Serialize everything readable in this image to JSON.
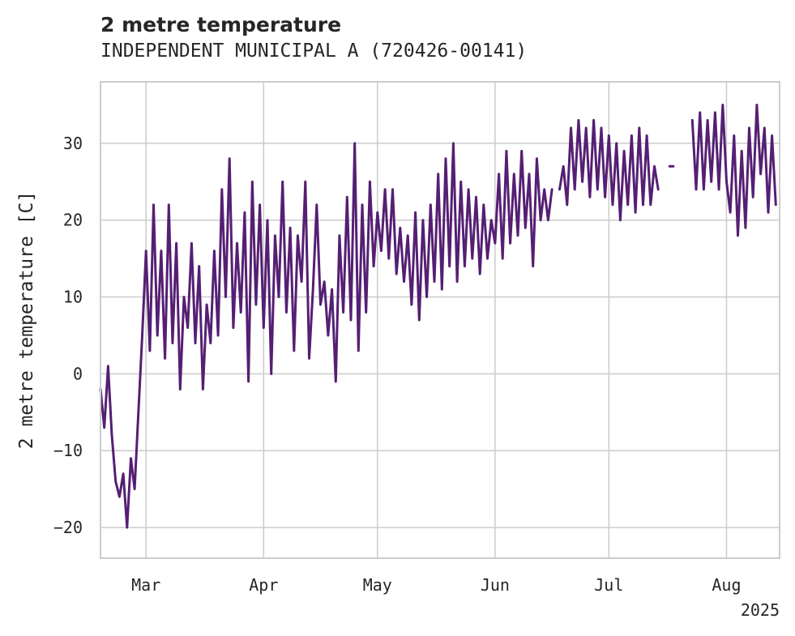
{
  "colors": {
    "line": "#551f73",
    "grid": "#cccccc",
    "frame": "#cccccc",
    "text": "#262626"
  },
  "chart_data": {
    "type": "line",
    "title": "2 metre temperature",
    "subtitle": "INDEPENDENT MUNICIPAL A (720426-00141)",
    "xlabel": "",
    "ylabel": "2 metre temperature [C]",
    "xlim": [
      "2025-02-17",
      "2025-08-15"
    ],
    "ylim": [
      -24,
      38
    ],
    "yticks": [
      -20,
      -10,
      0,
      10,
      20,
      30
    ],
    "xticks": [
      {
        "date": "2025-03-01",
        "label": "Mar"
      },
      {
        "date": "2025-04-01",
        "label": "Apr"
      },
      {
        "date": "2025-05-01",
        "label": "May"
      },
      {
        "date": "2025-06-01",
        "label": "Jun"
      },
      {
        "date": "2025-07-01",
        "label": "Jul"
      },
      {
        "date": "2025-08-01",
        "label": "Aug"
      }
    ],
    "year_label": "2025",
    "grid": true,
    "series": [
      {
        "segments": [
          [
            [
              "2025-02-17",
              -2
            ],
            [
              "2025-02-18",
              -7
            ],
            [
              "2025-02-19",
              1
            ],
            [
              "2025-02-20",
              -8
            ],
            [
              "2025-02-21",
              -14
            ],
            [
              "2025-02-22",
              -16
            ],
            [
              "2025-02-23",
              -13
            ],
            [
              "2025-02-24",
              -20
            ],
            [
              "2025-02-25",
              -11
            ],
            [
              "2025-02-26",
              -15
            ],
            [
              "2025-02-27",
              -5
            ],
            [
              "2025-02-28",
              5
            ],
            [
              "2025-03-01",
              16
            ],
            [
              "2025-03-02",
              3
            ],
            [
              "2025-03-03",
              22
            ],
            [
              "2025-03-04",
              5
            ],
            [
              "2025-03-05",
              16
            ],
            [
              "2025-03-06",
              2
            ],
            [
              "2025-03-07",
              22
            ],
            [
              "2025-03-08",
              4
            ],
            [
              "2025-03-09",
              17
            ],
            [
              "2025-03-10",
              -2
            ],
            [
              "2025-03-11",
              10
            ],
            [
              "2025-03-12",
              6
            ],
            [
              "2025-03-13",
              17
            ],
            [
              "2025-03-14",
              4
            ],
            [
              "2025-03-15",
              14
            ],
            [
              "2025-03-16",
              -2
            ],
            [
              "2025-03-17",
              9
            ],
            [
              "2025-03-18",
              4
            ],
            [
              "2025-03-19",
              16
            ],
            [
              "2025-03-20",
              5
            ],
            [
              "2025-03-21",
              24
            ],
            [
              "2025-03-22",
              10
            ],
            [
              "2025-03-23",
              28
            ],
            [
              "2025-03-24",
              6
            ],
            [
              "2025-03-25",
              17
            ],
            [
              "2025-03-26",
              8
            ],
            [
              "2025-03-27",
              21
            ],
            [
              "2025-03-28",
              -1
            ],
            [
              "2025-03-29",
              25
            ],
            [
              "2025-03-30",
              9
            ],
            [
              "2025-03-31",
              22
            ],
            [
              "2025-04-01",
              6
            ],
            [
              "2025-04-02",
              20
            ],
            [
              "2025-04-03",
              0
            ],
            [
              "2025-04-04",
              18
            ],
            [
              "2025-04-05",
              10
            ],
            [
              "2025-04-06",
              25
            ],
            [
              "2025-04-07",
              8
            ],
            [
              "2025-04-08",
              19
            ],
            [
              "2025-04-09",
              3
            ],
            [
              "2025-04-10",
              18
            ],
            [
              "2025-04-11",
              12
            ],
            [
              "2025-04-12",
              25
            ],
            [
              "2025-04-13",
              2
            ],
            [
              "2025-04-14",
              11
            ],
            [
              "2025-04-15",
              22
            ],
            [
              "2025-04-16",
              9
            ],
            [
              "2025-04-17",
              12
            ],
            [
              "2025-04-18",
              5
            ],
            [
              "2025-04-19",
              11
            ],
            [
              "2025-04-20",
              -1
            ],
            [
              "2025-04-21",
              18
            ],
            [
              "2025-04-22",
              8
            ],
            [
              "2025-04-23",
              23
            ],
            [
              "2025-04-24",
              7
            ],
            [
              "2025-04-25",
              30
            ],
            [
              "2025-04-26",
              3
            ],
            [
              "2025-04-27",
              22
            ],
            [
              "2025-04-28",
              8
            ],
            [
              "2025-04-29",
              25
            ],
            [
              "2025-04-30",
              14
            ],
            [
              "2025-05-01",
              21
            ],
            [
              "2025-05-02",
              16
            ],
            [
              "2025-05-03",
              24
            ],
            [
              "2025-05-04",
              15
            ],
            [
              "2025-05-05",
              24
            ],
            [
              "2025-05-06",
              13
            ],
            [
              "2025-05-07",
              19
            ],
            [
              "2025-05-08",
              12
            ],
            [
              "2025-05-09",
              18
            ],
            [
              "2025-05-10",
              9
            ],
            [
              "2025-05-11",
              21
            ],
            [
              "2025-05-12",
              7
            ],
            [
              "2025-05-13",
              20
            ],
            [
              "2025-05-14",
              10
            ],
            [
              "2025-05-15",
              22
            ],
            [
              "2025-05-16",
              12
            ],
            [
              "2025-05-17",
              26
            ],
            [
              "2025-05-18",
              11
            ],
            [
              "2025-05-19",
              28
            ],
            [
              "2025-05-20",
              14
            ],
            [
              "2025-05-21",
              30
            ],
            [
              "2025-05-22",
              12
            ],
            [
              "2025-05-23",
              25
            ],
            [
              "2025-05-24",
              14
            ],
            [
              "2025-05-25",
              24
            ],
            [
              "2025-05-26",
              15
            ],
            [
              "2025-05-27",
              23
            ],
            [
              "2025-05-28",
              13
            ],
            [
              "2025-05-29",
              22
            ],
            [
              "2025-05-30",
              15
            ],
            [
              "2025-05-31",
              20
            ],
            [
              "2025-06-01",
              17
            ],
            [
              "2025-06-02",
              26
            ],
            [
              "2025-06-03",
              15
            ],
            [
              "2025-06-04",
              29
            ],
            [
              "2025-06-05",
              17
            ],
            [
              "2025-06-06",
              26
            ],
            [
              "2025-06-07",
              18
            ],
            [
              "2025-06-08",
              29
            ],
            [
              "2025-06-09",
              19
            ],
            [
              "2025-06-10",
              26
            ],
            [
              "2025-06-11",
              14
            ],
            [
              "2025-06-12",
              28
            ],
            [
              "2025-06-13",
              20
            ],
            [
              "2025-06-14",
              24
            ],
            [
              "2025-06-15",
              20
            ],
            [
              "2025-06-16",
              24
            ]
          ],
          [
            [
              "2025-06-18",
              24
            ],
            [
              "2025-06-19",
              27
            ],
            [
              "2025-06-20",
              22
            ],
            [
              "2025-06-21",
              32
            ],
            [
              "2025-06-22",
              24
            ],
            [
              "2025-06-23",
              33
            ],
            [
              "2025-06-24",
              25
            ],
            [
              "2025-06-25",
              32
            ],
            [
              "2025-06-26",
              23
            ],
            [
              "2025-06-27",
              33
            ],
            [
              "2025-06-28",
              24
            ],
            [
              "2025-06-29",
              32
            ],
            [
              "2025-06-30",
              23
            ],
            [
              "2025-07-01",
              31
            ],
            [
              "2025-07-02",
              22
            ],
            [
              "2025-07-03",
              30
            ],
            [
              "2025-07-04",
              20
            ],
            [
              "2025-07-05",
              29
            ],
            [
              "2025-07-06",
              22
            ],
            [
              "2025-07-07",
              31
            ],
            [
              "2025-07-08",
              21
            ],
            [
              "2025-07-09",
              32
            ],
            [
              "2025-07-10",
              22
            ],
            [
              "2025-07-11",
              31
            ],
            [
              "2025-07-12",
              22
            ],
            [
              "2025-07-13",
              27
            ],
            [
              "2025-07-14",
              24
            ]
          ],
          [
            [
              "2025-07-17",
              27
            ],
            [
              "2025-07-18",
              27
            ]
          ],
          [
            [
              "2025-07-23",
              33
            ],
            [
              "2025-07-24",
              24
            ],
            [
              "2025-07-25",
              34
            ],
            [
              "2025-07-26",
              24
            ],
            [
              "2025-07-27",
              33
            ],
            [
              "2025-07-28",
              25
            ],
            [
              "2025-07-29",
              34
            ],
            [
              "2025-07-30",
              24
            ],
            [
              "2025-07-31",
              35
            ],
            [
              "2025-08-01",
              25
            ],
            [
              "2025-08-02",
              21
            ],
            [
              "2025-08-03",
              31
            ],
            [
              "2025-08-04",
              18
            ],
            [
              "2025-08-05",
              29
            ],
            [
              "2025-08-06",
              19
            ],
            [
              "2025-08-07",
              32
            ],
            [
              "2025-08-08",
              23
            ],
            [
              "2025-08-09",
              35
            ],
            [
              "2025-08-10",
              26
            ],
            [
              "2025-08-11",
              32
            ],
            [
              "2025-08-12",
              21
            ],
            [
              "2025-08-13",
              31
            ],
            [
              "2025-08-14",
              22
            ]
          ]
        ]
      }
    ]
  }
}
